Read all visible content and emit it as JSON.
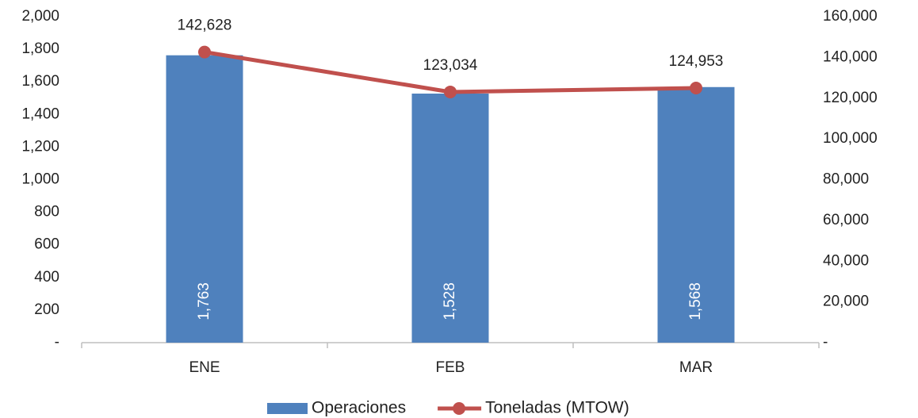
{
  "chart_data": {
    "type": "bar",
    "categories": [
      "ENE",
      "FEB",
      "MAR"
    ],
    "series": [
      {
        "name": "Operaciones",
        "type": "bar",
        "color": "#4f81bd",
        "values": [
          1763,
          1528,
          1568
        ],
        "value_labels": [
          "1,763",
          "1,528",
          "1,568"
        ]
      },
      {
        "name": "Toneladas (MTOW)",
        "type": "line",
        "axis": "y2",
        "color": "#c0504d",
        "values": [
          142628,
          123034,
          124953
        ],
        "value_labels": [
          "142,628",
          "123,034",
          "124,953"
        ]
      }
    ],
    "ylim": [
      0,
      2000
    ],
    "yticks": [
      {
        "value": 0,
        "label": "-"
      },
      200,
      400,
      600,
      800,
      {
        "value": 1000,
        "label": "1,000"
      },
      {
        "value": 1200,
        "label": "1,200"
      },
      {
        "value": 1400,
        "label": "1,400"
      },
      {
        "value": 1600,
        "label": "1,600"
      },
      {
        "value": 1800,
        "label": "1,800"
      },
      {
        "value": 2000,
        "label": "2,000"
      }
    ],
    "y2lim": [
      0,
      160000
    ],
    "y2ticks": [
      {
        "value": 0,
        "label": "-"
      },
      {
        "value": 20000,
        "label": "20,000"
      },
      {
        "value": 40000,
        "label": "40,000"
      },
      {
        "value": 60000,
        "label": "60,000"
      },
      {
        "value": 80000,
        "label": "80,000"
      },
      {
        "value": 100000,
        "label": "100,000"
      },
      {
        "value": 120000,
        "label": "120,000"
      },
      {
        "value": 140000,
        "label": "140,000"
      },
      {
        "value": 160000,
        "label": "160,000"
      }
    ],
    "legend": "bottom"
  }
}
